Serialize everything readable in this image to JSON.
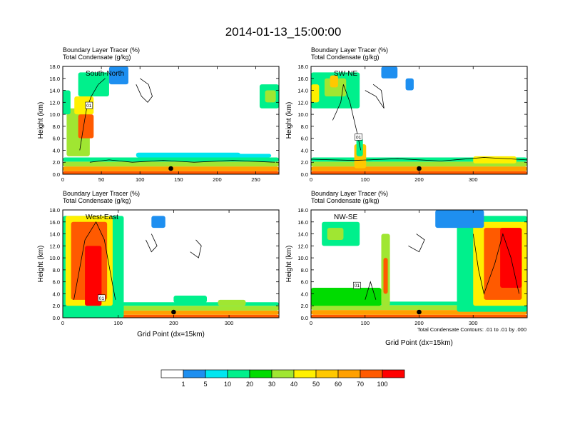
{
  "title": "2014-01-13_15:00:00",
  "footnote": "Total Condensate Contours: .01 to .01 by .000",
  "colorbar": {
    "colors": [
      "#ffffff",
      "#1e8ff0",
      "#00e6f0",
      "#00f08c",
      "#00dc00",
      "#a0e632",
      "#fff000",
      "#ffc800",
      "#ffa000",
      "#ff5a00",
      "#ff0000"
    ],
    "labels": [
      "1",
      "5",
      "10",
      "20",
      "30",
      "40",
      "50",
      "60",
      "70",
      "100"
    ]
  },
  "chart_data": [
    {
      "type": "heatmap",
      "panel": "top-left",
      "label": "South-North",
      "var1": "Boundary Layer Tracer   (%)",
      "var2": "Total Condensate   (g/kg)",
      "ylabel": "Height (km)",
      "xlabel": "",
      "xlim": [
        0,
        280
      ],
      "ylim": [
        0,
        18
      ],
      "xticks": [
        0,
        50,
        100,
        150,
        200,
        250
      ],
      "yticks": [
        "0.0",
        "2.0",
        "4.0",
        "6.0",
        "8.0",
        "10.0",
        "12.0",
        "14.0",
        "16.0",
        "18.0"
      ],
      "marker_x": 140,
      "contour_label": "01",
      "contour_label_pos": [
        34,
        11.5
      ],
      "blobs": [
        [
          0,
          0,
          280,
          0.5,
          9
        ],
        [
          0,
          0.5,
          280,
          0.8,
          8
        ],
        [
          0,
          1.3,
          280,
          0.8,
          5
        ],
        [
          0,
          2.1,
          280,
          0.7,
          3
        ],
        [
          95,
          2.8,
          135,
          0.8,
          2
        ],
        [
          175,
          2.8,
          95,
          0.6,
          2
        ],
        [
          5,
          3,
          30,
          8,
          5
        ],
        [
          20,
          6,
          20,
          4,
          9
        ],
        [
          15,
          10,
          25,
          3,
          6
        ],
        [
          0,
          10,
          10,
          4,
          3
        ],
        [
          20,
          13,
          40,
          4,
          3
        ],
        [
          60,
          15,
          25,
          3,
          1
        ],
        [
          90,
          14,
          30,
          2,
          0
        ],
        [
          255,
          11,
          25,
          4,
          3
        ],
        [
          262,
          12,
          14,
          2,
          5
        ]
      ],
      "contours": [
        [
          [
            22,
            4
          ],
          [
            27,
            8
          ],
          [
            31,
            11
          ],
          [
            37,
            13
          ],
          [
            46,
            15
          ],
          [
            55,
            16
          ]
        ],
        [
          [
            95,
            15
          ],
          [
            102,
            13
          ],
          [
            110,
            12
          ],
          [
            116,
            13
          ],
          [
            111,
            15
          ],
          [
            100,
            16
          ]
        ],
        [
          [
            35,
            2
          ],
          [
            60,
            2.4
          ],
          [
            90,
            2
          ],
          [
            130,
            2.3
          ],
          [
            170,
            2
          ],
          [
            220,
            2.3
          ],
          [
            275,
            2
          ]
        ]
      ]
    },
    {
      "type": "heatmap",
      "panel": "top-right",
      "label": "SW-NE",
      "var1": "Boundary Layer Tracer   (%)",
      "var2": "Total Condensate   (g/kg)",
      "ylabel": "Height (km)",
      "xlabel": "",
      "xlim": [
        0,
        400
      ],
      "ylim": [
        0,
        18
      ],
      "xticks": [
        0,
        100,
        200,
        300
      ],
      "yticks": [
        "0.0",
        "2.0",
        "4.0",
        "6.0",
        "8.0",
        "10.0",
        "12.0",
        "14.0",
        "16.0",
        "18.0"
      ],
      "marker_x": 200,
      "contour_label": "01",
      "contour_label_pos": [
        88,
        6.2
      ],
      "blobs": [
        [
          0,
          0,
          400,
          0.5,
          9
        ],
        [
          0,
          0.5,
          400,
          0.8,
          8
        ],
        [
          0,
          1.3,
          400,
          0.8,
          5
        ],
        [
          0,
          2.1,
          400,
          0.7,
          3
        ],
        [
          300,
          1.8,
          80,
          1.2,
          6
        ],
        [
          80,
          1,
          22,
          4,
          7
        ],
        [
          84,
          3,
          12,
          3,
          3
        ],
        [
          0,
          11,
          90,
          6,
          3
        ],
        [
          25,
          13,
          40,
          3,
          5
        ],
        [
          35,
          14.5,
          15,
          2,
          7
        ],
        [
          0,
          12,
          15,
          3,
          6
        ],
        [
          130,
          16,
          30,
          2,
          1
        ],
        [
          175,
          14,
          15,
          2,
          1
        ]
      ],
      "contours": [
        [
          [
            40,
            9
          ],
          [
            55,
            12
          ],
          [
            60,
            15
          ],
          [
            72,
            12
          ],
          [
            85,
            7
          ],
          [
            92,
            4
          ]
        ],
        [
          [
            100,
            14
          ],
          [
            120,
            13
          ],
          [
            135,
            11
          ],
          [
            130,
            14
          ],
          [
            115,
            15
          ]
        ],
        [
          [
            0,
            2.5
          ],
          [
            80,
            2.3
          ],
          [
            160,
            2.6
          ],
          [
            240,
            2.2
          ],
          [
            320,
            2.8
          ],
          [
            400,
            2.4
          ]
        ]
      ]
    },
    {
      "type": "heatmap",
      "panel": "bottom-left",
      "label": "West-East",
      "var1": "Boundary Layer Tracer   (%)",
      "var2": "Total Condensate   (g/kg)",
      "ylabel": "Height (km)",
      "xlabel": "Grid Point  (dx=15km)",
      "xlim": [
        0,
        390
      ],
      "ylim": [
        0,
        18
      ],
      "xticks": [
        0,
        100,
        200,
        300
      ],
      "yticks": [
        "0.0",
        "2.0",
        "4.0",
        "6.0",
        "8.0",
        "10.0",
        "12.0",
        "14.0",
        "16.0",
        "18.0"
      ],
      "marker_x": 200,
      "contour_label": "01",
      "contour_label_pos": [
        70,
        3.3
      ],
      "blobs": [
        [
          0,
          0,
          390,
          0.5,
          9
        ],
        [
          0,
          0.5,
          390,
          0.7,
          8
        ],
        [
          0,
          1.2,
          390,
          0.8,
          5
        ],
        [
          0,
          2.0,
          390,
          0.6,
          3
        ],
        [
          0,
          0,
          110,
          17,
          3
        ],
        [
          5,
          2,
          85,
          15,
          6
        ],
        [
          15,
          3,
          65,
          13,
          9
        ],
        [
          40,
          2,
          30,
          10,
          10
        ],
        [
          160,
          15,
          25,
          2,
          1
        ],
        [
          200,
          2.5,
          60,
          1.2,
          3
        ],
        [
          280,
          2,
          50,
          1,
          5
        ]
      ],
      "contours": [
        [
          [
            20,
            3
          ],
          [
            30,
            8
          ],
          [
            40,
            13
          ],
          [
            60,
            16
          ],
          [
            75,
            13
          ],
          [
            85,
            8
          ],
          [
            95,
            3
          ]
        ],
        [
          [
            150,
            13
          ],
          [
            160,
            11
          ],
          [
            170,
            12
          ],
          [
            160,
            14
          ]
        ],
        [
          [
            230,
            11
          ],
          [
            245,
            10
          ],
          [
            250,
            12
          ],
          [
            240,
            13
          ]
        ]
      ]
    },
    {
      "type": "heatmap",
      "panel": "bottom-right",
      "label": "NW-SE",
      "var1": "Boundary Layer Tracer   (%)",
      "var2": "Total Condensate   (g/kg)",
      "ylabel": "Height (km)",
      "xlabel": "Grid Point  (dx=15km)",
      "xlim": [
        0,
        400
      ],
      "ylim": [
        0,
        18
      ],
      "xticks": [
        0,
        100,
        200,
        300
      ],
      "yticks": [
        "0.0",
        "2.0",
        "4.0",
        "6.0",
        "8.0",
        "10.0",
        "12.0",
        "14.0",
        "16.0",
        "18.0"
      ],
      "marker_x": 200,
      "contour_label": "01",
      "contour_label_pos": [
        85,
        5.4
      ],
      "blobs": [
        [
          0,
          0,
          400,
          0.5,
          9
        ],
        [
          0,
          0.5,
          400,
          0.8,
          8
        ],
        [
          0,
          1.3,
          400,
          0.8,
          5
        ],
        [
          0,
          2.1,
          400,
          0.6,
          3
        ],
        [
          0,
          2,
          130,
          3,
          4
        ],
        [
          20,
          12,
          70,
          4,
          3
        ],
        [
          30,
          13,
          30,
          2,
          5
        ],
        [
          130,
          2,
          16,
          12,
          5
        ],
        [
          134,
          4,
          8,
          6,
          9
        ],
        [
          270,
          1,
          130,
          16,
          3
        ],
        [
          300,
          2,
          100,
          14,
          6
        ],
        [
          320,
          3,
          70,
          12,
          9
        ],
        [
          350,
          5,
          40,
          10,
          10
        ],
        [
          230,
          15,
          90,
          3,
          1
        ]
      ],
      "contours": [
        [
          [
            300,
            14
          ],
          [
            310,
            8
          ],
          [
            320,
            4
          ],
          [
            340,
            9
          ],
          [
            355,
            14
          ],
          [
            370,
            10
          ],
          [
            385,
            4
          ]
        ],
        [
          [
            100,
            3
          ],
          [
            110,
            6
          ],
          [
            120,
            3
          ]
        ],
        [
          [
            180,
            12
          ],
          [
            200,
            11
          ],
          [
            210,
            13
          ],
          [
            195,
            14
          ]
        ]
      ]
    }
  ]
}
